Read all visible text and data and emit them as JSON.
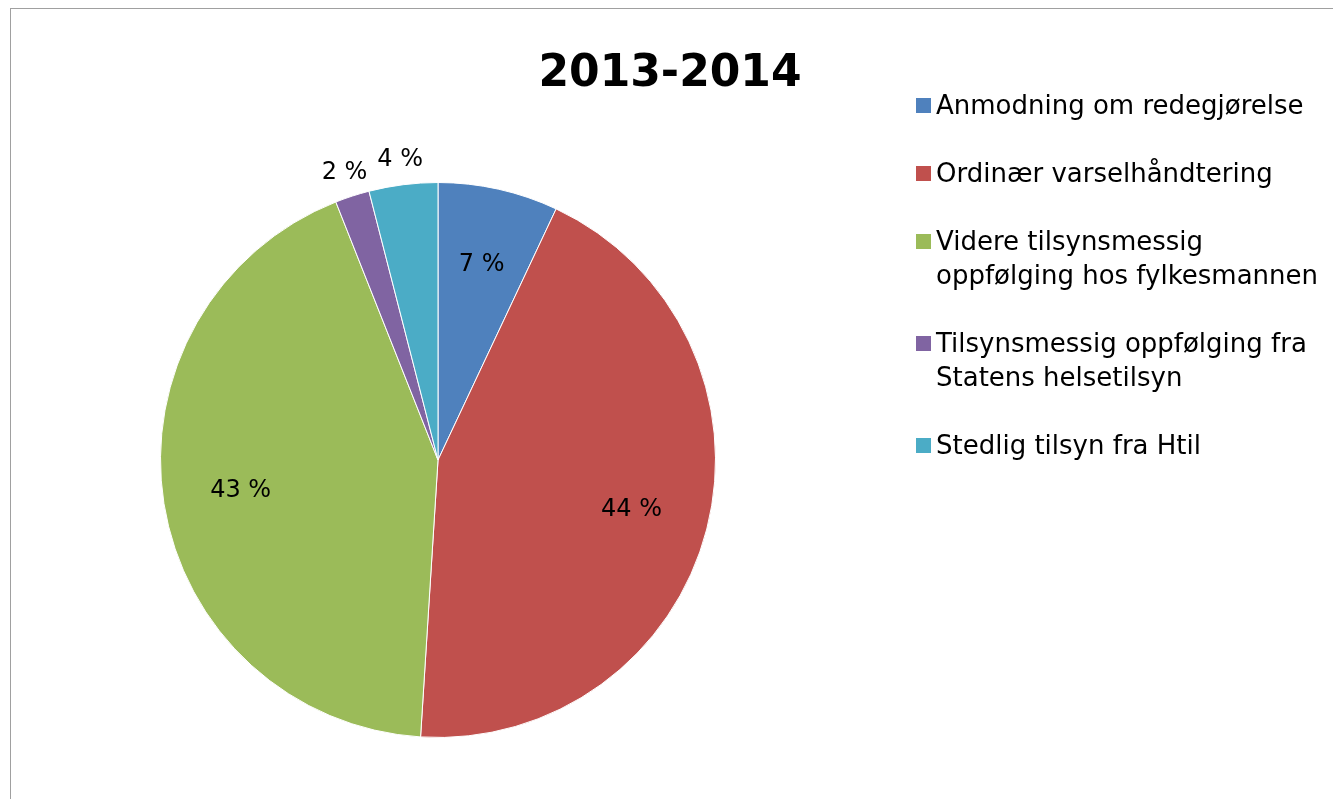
{
  "chart_data": {
    "type": "pie",
    "title": "2013-2014",
    "categories": [
      "Anmodning om redegjørelse",
      "Ordinær varselhåndtering",
      "Videre tilsynsmessig oppfølging hos fylkesmannen",
      "Tilsynsmessig oppfølging fra Statens helsetilsyn",
      "Stedlig tilsyn fra Htil"
    ],
    "values": [
      7,
      44,
      43,
      2,
      4
    ],
    "value_labels": [
      "7 %",
      "44 %",
      "43 %",
      "2 %",
      "4 %"
    ],
    "colors": [
      "#4f81bd",
      "#c0504d",
      "#9bbb59",
      "#8064a2",
      "#4bacc6"
    ],
    "legend": "right"
  }
}
